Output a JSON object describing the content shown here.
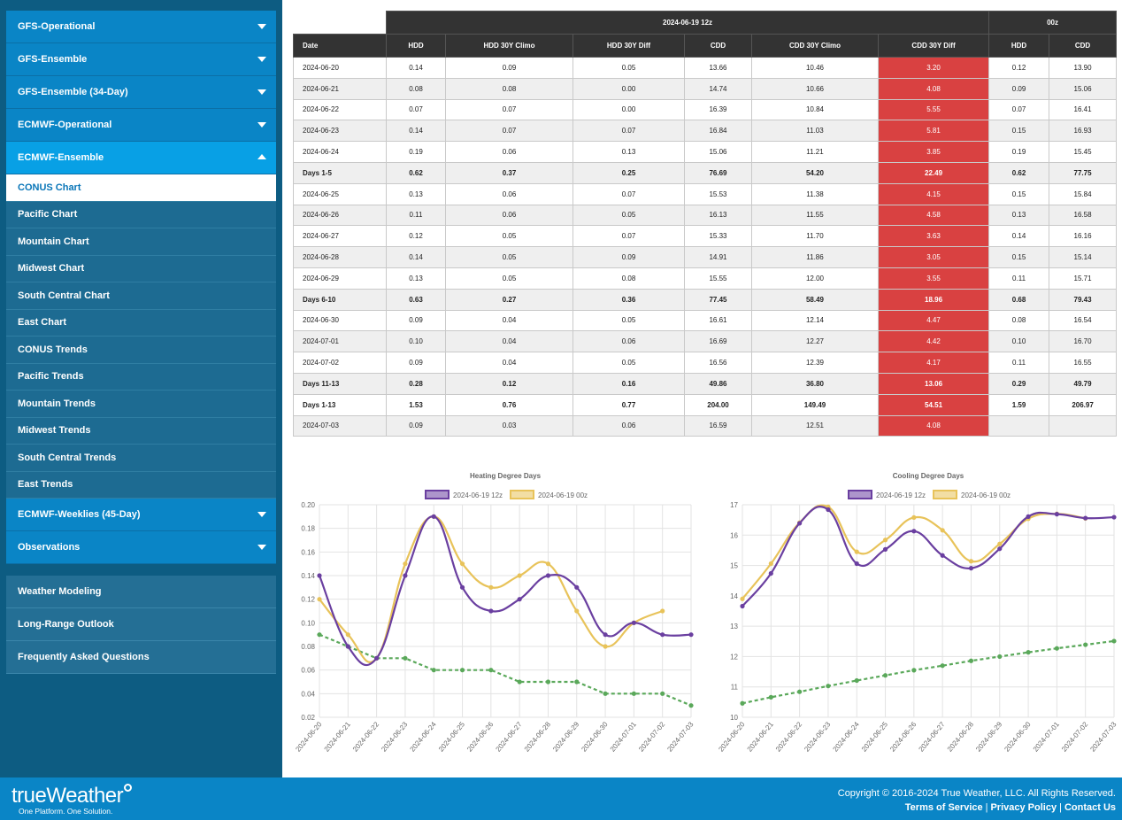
{
  "sidebar": {
    "models": [
      {
        "label": "GFS-Operational"
      },
      {
        "label": "GFS-Ensemble"
      },
      {
        "label": "GFS-Ensemble (34-Day)"
      },
      {
        "label": "ECMWF-Operational"
      },
      {
        "label": "ECMWF-Ensemble"
      }
    ],
    "sub_items": [
      {
        "label": "CONUS Chart"
      },
      {
        "label": "Pacific Chart"
      },
      {
        "label": "Mountain Chart"
      },
      {
        "label": "Midwest Chart"
      },
      {
        "label": "South Central Chart"
      },
      {
        "label": "East Chart"
      },
      {
        "label": "CONUS Trends"
      },
      {
        "label": "Pacific Trends"
      },
      {
        "label": "Mountain Trends"
      },
      {
        "label": "Midwest Trends"
      },
      {
        "label": "South Central Trends"
      },
      {
        "label": "East Trends"
      }
    ],
    "more_models": [
      {
        "label": "ECMWF-Weeklies (45-Day)"
      },
      {
        "label": "Observations"
      }
    ],
    "extra": [
      {
        "label": "Weather Modeling"
      },
      {
        "label": "Long-Range Outlook"
      },
      {
        "label": "Frequently Asked Questions"
      }
    ]
  },
  "table": {
    "group_headers": {
      "run_12z": "2024-06-19 12z",
      "run_00z": "00z"
    },
    "columns": [
      "Date",
      "HDD",
      "HDD 30Y Climo",
      "HDD 30Y Diff",
      "CDD",
      "CDD 30Y Climo",
      "CDD 30Y Diff",
      "HDD",
      "CDD"
    ],
    "rows": [
      {
        "cells": [
          "2024-06-20",
          "0.14",
          "0.09",
          "0.05",
          "13.66",
          "10.46",
          "3.20",
          "0.12",
          "13.90"
        ],
        "bold": false
      },
      {
        "cells": [
          "2024-06-21",
          "0.08",
          "0.08",
          "0.00",
          "14.74",
          "10.66",
          "4.08",
          "0.09",
          "15.06"
        ],
        "bold": false
      },
      {
        "cells": [
          "2024-06-22",
          "0.07",
          "0.07",
          "0.00",
          "16.39",
          "10.84",
          "5.55",
          "0.07",
          "16.41"
        ],
        "bold": false
      },
      {
        "cells": [
          "2024-06-23",
          "0.14",
          "0.07",
          "0.07",
          "16.84",
          "11.03",
          "5.81",
          "0.15",
          "16.93"
        ],
        "bold": false
      },
      {
        "cells": [
          "2024-06-24",
          "0.19",
          "0.06",
          "0.13",
          "15.06",
          "11.21",
          "3.85",
          "0.19",
          "15.45"
        ],
        "bold": false
      },
      {
        "cells": [
          "Days 1-5",
          "0.62",
          "0.37",
          "0.25",
          "76.69",
          "54.20",
          "22.49",
          "0.62",
          "77.75"
        ],
        "bold": true
      },
      {
        "cells": [
          "2024-06-25",
          "0.13",
          "0.06",
          "0.07",
          "15.53",
          "11.38",
          "4.15",
          "0.15",
          "15.84"
        ],
        "bold": false
      },
      {
        "cells": [
          "2024-06-26",
          "0.11",
          "0.06",
          "0.05",
          "16.13",
          "11.55",
          "4.58",
          "0.13",
          "16.58"
        ],
        "bold": false
      },
      {
        "cells": [
          "2024-06-27",
          "0.12",
          "0.05",
          "0.07",
          "15.33",
          "11.70",
          "3.63",
          "0.14",
          "16.16"
        ],
        "bold": false
      },
      {
        "cells": [
          "2024-06-28",
          "0.14",
          "0.05",
          "0.09",
          "14.91",
          "11.86",
          "3.05",
          "0.15",
          "15.14"
        ],
        "bold": false
      },
      {
        "cells": [
          "2024-06-29",
          "0.13",
          "0.05",
          "0.08",
          "15.55",
          "12.00",
          "3.55",
          "0.11",
          "15.71"
        ],
        "bold": false
      },
      {
        "cells": [
          "Days 6-10",
          "0.63",
          "0.27",
          "0.36",
          "77.45",
          "58.49",
          "18.96",
          "0.68",
          "79.43"
        ],
        "bold": true
      },
      {
        "cells": [
          "2024-06-30",
          "0.09",
          "0.04",
          "0.05",
          "16.61",
          "12.14",
          "4.47",
          "0.08",
          "16.54"
        ],
        "bold": false
      },
      {
        "cells": [
          "2024-07-01",
          "0.10",
          "0.04",
          "0.06",
          "16.69",
          "12.27",
          "4.42",
          "0.10",
          "16.70"
        ],
        "bold": false
      },
      {
        "cells": [
          "2024-07-02",
          "0.09",
          "0.04",
          "0.05",
          "16.56",
          "12.39",
          "4.17",
          "0.11",
          "16.55"
        ],
        "bold": false
      },
      {
        "cells": [
          "Days 11-13",
          "0.28",
          "0.12",
          "0.16",
          "49.86",
          "36.80",
          "13.06",
          "0.29",
          "49.79"
        ],
        "bold": true
      },
      {
        "cells": [
          "Days 1-13",
          "1.53",
          "0.76",
          "0.77",
          "204.00",
          "149.49",
          "54.51",
          "1.59",
          "206.97"
        ],
        "bold": true
      },
      {
        "cells": [
          "2024-07-03",
          "0.09",
          "0.03",
          "0.06",
          "16.59",
          "12.51",
          "4.08",
          "",
          ""
        ],
        "bold": false
      }
    ]
  },
  "colors": {
    "cdd_diff_bg": "#d94141",
    "series_12z": "#6a3fa0",
    "series_00z": "#e8c35a",
    "series_climo": "#5aa85a",
    "sidebar_bg": "#0d5c82",
    "accent": "#0a85c6"
  },
  "chart_data": [
    {
      "type": "line",
      "title": "Heating Degree Days",
      "x": [
        "2024-06-20",
        "2024-06-21",
        "2024-06-22",
        "2024-06-23",
        "2024-06-24",
        "2024-06-25",
        "2024-06-26",
        "2024-06-27",
        "2024-06-28",
        "2024-06-29",
        "2024-06-30",
        "2024-07-01",
        "2024-07-02",
        "2024-07-03"
      ],
      "ylim": [
        0.02,
        0.2
      ],
      "yticks": [
        "0.20",
        "0.18",
        "0.16",
        "0.14",
        "0.12",
        "0.10",
        "0.08",
        "0.06",
        "0.04",
        "0.02"
      ],
      "legend": "top-center",
      "grid": true,
      "series": [
        {
          "name": "2024-06-19 12z",
          "values": [
            0.14,
            0.08,
            0.07,
            0.14,
            0.19,
            0.13,
            0.11,
            0.12,
            0.14,
            0.13,
            0.09,
            0.1,
            0.09,
            0.09
          ]
        },
        {
          "name": "2024-06-19 00z",
          "values": [
            0.12,
            0.09,
            0.07,
            0.15,
            0.19,
            0.15,
            0.13,
            0.14,
            0.15,
            0.11,
            0.08,
            0.1,
            0.11,
            null
          ]
        },
        {
          "values": [
            0.09,
            0.08,
            0.07,
            0.07,
            0.06,
            0.06,
            0.06,
            0.05,
            0.05,
            0.05,
            0.04,
            0.04,
            0.04,
            0.03
          ]
        }
      ]
    },
    {
      "type": "line",
      "title": "Cooling Degree Days",
      "x": [
        "2024-06-20",
        "2024-06-21",
        "2024-06-22",
        "2024-06-23",
        "2024-06-24",
        "2024-06-25",
        "2024-06-26",
        "2024-06-27",
        "2024-06-28",
        "2024-06-29",
        "2024-06-30",
        "2024-07-01",
        "2024-07-02",
        "2024-07-03"
      ],
      "ylim": [
        10,
        17
      ],
      "yticks": [
        "17",
        "16",
        "15",
        "14",
        "13",
        "12",
        "11",
        "10"
      ],
      "legend": "top-center",
      "grid": true,
      "series": [
        {
          "name": "2024-06-19 12z",
          "values": [
            13.66,
            14.74,
            16.39,
            16.84,
            15.06,
            15.53,
            16.13,
            15.33,
            14.91,
            15.55,
            16.61,
            16.69,
            16.56,
            16.59
          ]
        },
        {
          "name": "2024-06-19 00z",
          "values": [
            13.9,
            15.06,
            16.41,
            16.93,
            15.45,
            15.84,
            16.58,
            16.16,
            15.14,
            15.71,
            16.54,
            16.7,
            16.55,
            null
          ]
        },
        {
          "values": [
            10.46,
            10.66,
            10.84,
            11.03,
            11.21,
            11.38,
            11.55,
            11.7,
            11.86,
            12.0,
            12.14,
            12.27,
            12.39,
            12.51
          ]
        }
      ]
    }
  ],
  "footer": {
    "logo_part1": "true",
    "logo_part2": "Weather",
    "tagline": "One Platform. One Solution.",
    "copyright": "Copyright © 2016-2024 True Weather, LLC. All Rights Reserved.",
    "links": [
      {
        "label": "Terms of Service"
      },
      {
        "label": "Privacy Policy"
      },
      {
        "label": "Contact Us"
      }
    ],
    "separator": "|"
  }
}
